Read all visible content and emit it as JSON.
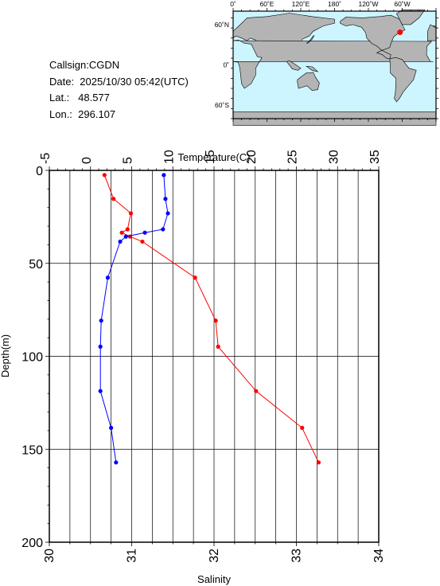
{
  "info": {
    "callsign": "Callsign:CGDN",
    "date": "Date:  2025/10/30 05:42(UTC)",
    "lat": "Lat.:   48.577",
    "lon": "Lon.:  296.107"
  },
  "map": {
    "top_ticks": [
      "0˚",
      "60˚E",
      "120˚E",
      "180˚",
      "120˚W",
      "60˚W"
    ],
    "left_ticks": [
      "60˚N",
      "0˚",
      "60˚S"
    ],
    "ocean_color": "#ccf5ff",
    "land_color": "#b4b4b4",
    "station_marker": {
      "lon": 296.107,
      "lat": 48.577,
      "color": "#ff0000"
    }
  },
  "chart_data": {
    "type": "line",
    "top_axis_label": "Temperature(C)",
    "left_axis_label": "Depth(m)",
    "bottom_axis_label": "Salinity",
    "temperature_range": [
      -5,
      35
    ],
    "temperature_ticks": [
      -5,
      0,
      5,
      10,
      15,
      20,
      25,
      30,
      35
    ],
    "salinity_range": [
      30,
      34
    ],
    "salinity_ticks": [
      30,
      31,
      32,
      33,
      34
    ],
    "depth_range": [
      0,
      200
    ],
    "depth_ticks": [
      0,
      50,
      100,
      150,
      200
    ],
    "grid": true,
    "series": [
      {
        "quantity": "temperature",
        "color": "#ff0000",
        "points": [
          {
            "depth": 2.5,
            "value": 1.7
          },
          {
            "depth": 15.3,
            "value": 2.8
          },
          {
            "depth": 23.1,
            "value": 4.9
          },
          {
            "depth": 31.7,
            "value": 4.5
          },
          {
            "depth": 33.5,
            "value": 3.8
          },
          {
            "depth": 35.6,
            "value": 4.8
          },
          {
            "depth": 38.3,
            "value": 6.3
          },
          {
            "depth": 57.7,
            "value": 12.7
          },
          {
            "depth": 80.8,
            "value": 15.2
          },
          {
            "depth": 94.8,
            "value": 15.5
          },
          {
            "depth": 118.7,
            "value": 20.1
          },
          {
            "depth": 138.5,
            "value": 25.7
          },
          {
            "depth": 157.1,
            "value": 27.7
          }
        ]
      },
      {
        "quantity": "salinity",
        "color": "#0000ff",
        "points": [
          {
            "depth": 2.5,
            "value": 31.39
          },
          {
            "depth": 15.3,
            "value": 31.41
          },
          {
            "depth": 23.1,
            "value": 31.44
          },
          {
            "depth": 31.7,
            "value": 31.38
          },
          {
            "depth": 33.5,
            "value": 31.16
          },
          {
            "depth": 35.6,
            "value": 30.93
          },
          {
            "depth": 38.3,
            "value": 30.86
          },
          {
            "depth": 57.7,
            "value": 30.71
          },
          {
            "depth": 80.8,
            "value": 30.63
          },
          {
            "depth": 94.8,
            "value": 30.62
          },
          {
            "depth": 118.7,
            "value": 30.62
          },
          {
            "depth": 138.5,
            "value": 30.75
          },
          {
            "depth": 157.1,
            "value": 30.81
          }
        ]
      }
    ]
  }
}
